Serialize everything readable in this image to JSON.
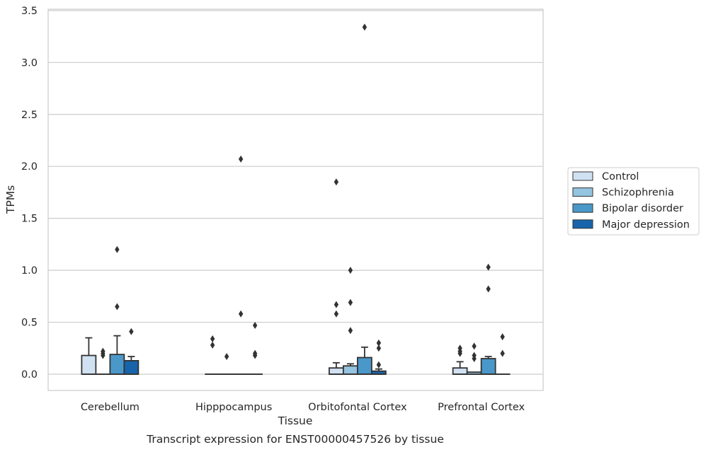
{
  "chart_data": {
    "type": "box",
    "ylabel": "TPMs",
    "xlabel": "Tissue",
    "caption": "Transcript expression for ENST00000457526 by tissue",
    "ylim": [
      -0.16,
      3.52
    ],
    "yticks": [
      "0.0",
      "0.5",
      "1.0",
      "1.5",
      "2.0",
      "2.5",
      "3.0",
      "3.5"
    ],
    "ytick_values": [
      0,
      0.5,
      1.0,
      1.5,
      2.0,
      2.5,
      3.0,
      3.5
    ],
    "grid": "horizontal",
    "legend_position": "right",
    "categories": [
      "Cerebellum",
      "Hipppocampus",
      "Orbitofontal Cortex",
      "Prefrontal Cortex"
    ],
    "series": [
      {
        "name": "Control",
        "color": "#d0e1f2",
        "boxes": [
          {
            "q1": 0,
            "median": 0,
            "q3": 0.18,
            "whisker_low": 0,
            "whisker_high": 0.35,
            "outliers": []
          },
          {
            "q1": 0,
            "median": 0,
            "q3": 0,
            "whisker_low": 0,
            "whisker_high": 0,
            "outliers": [
              0.28,
              0.34
            ]
          },
          {
            "q1": 0,
            "median": 0,
            "q3": 0.06,
            "whisker_low": 0,
            "whisker_high": 0.11,
            "outliers": [
              0.58,
              0.67,
              1.85
            ]
          },
          {
            "q1": 0,
            "median": 0,
            "q3": 0.06,
            "whisker_low": 0,
            "whisker_high": 0.12,
            "outliers": [
              0.2,
              0.22,
              0.25
            ]
          }
        ]
      },
      {
        "name": "Schizophrenia",
        "color": "#94c4df",
        "boxes": [
          {
            "q1": 0,
            "median": 0,
            "q3": 0,
            "whisker_low": 0,
            "whisker_high": 0,
            "outliers": [
              0.18,
              0.2,
              0.22
            ]
          },
          {
            "q1": 0,
            "median": 0,
            "q3": 0,
            "whisker_low": 0,
            "whisker_high": 0,
            "outliers": [
              0.17
            ]
          },
          {
            "q1": 0,
            "median": 0,
            "q3": 0.08,
            "whisker_low": 0,
            "whisker_high": 0.1,
            "outliers": [
              0.42,
              0.69,
              1.0
            ]
          },
          {
            "q1": 0,
            "median": 0,
            "q3": 0.02,
            "whisker_low": 0,
            "whisker_high": 0.02,
            "outliers": [
              0.15,
              0.18,
              0.27
            ]
          }
        ]
      },
      {
        "name": "Bipolar disorder",
        "color": "#4a98c9",
        "boxes": [
          {
            "q1": 0,
            "median": 0,
            "q3": 0.19,
            "whisker_low": 0,
            "whisker_high": 0.37,
            "outliers": [
              0.65,
              1.2
            ]
          },
          {
            "q1": 0,
            "median": 0,
            "q3": 0,
            "whisker_low": 0,
            "whisker_high": 0,
            "outliers": [
              0.58,
              2.07
            ]
          },
          {
            "q1": 0,
            "median": 0,
            "q3": 0.16,
            "whisker_low": 0,
            "whisker_high": 0.26,
            "outliers": [
              3.34
            ]
          },
          {
            "q1": 0,
            "median": 0,
            "q3": 0.15,
            "whisker_low": 0,
            "whisker_high": 0.17,
            "outliers": [
              0.82,
              1.03
            ]
          }
        ]
      },
      {
        "name": "Major depression",
        "color": "#1764ab",
        "boxes": [
          {
            "q1": 0,
            "median": 0,
            "q3": 0.13,
            "whisker_low": 0,
            "whisker_high": 0.17,
            "outliers": [
              0.41
            ]
          },
          {
            "q1": 0,
            "median": 0,
            "q3": 0,
            "whisker_low": 0,
            "whisker_high": 0,
            "outliers": [
              0.18,
              0.2,
              0.47
            ]
          },
          {
            "q1": 0,
            "median": 0,
            "q3": 0.03,
            "whisker_low": 0,
            "whisker_high": 0.05,
            "outliers": [
              0.09,
              0.25,
              0.3
            ]
          },
          {
            "q1": 0,
            "median": 0,
            "q3": 0,
            "whisker_low": 0,
            "whisker_high": 0,
            "outliers": [
              0.2,
              0.36
            ]
          }
        ]
      }
    ]
  }
}
